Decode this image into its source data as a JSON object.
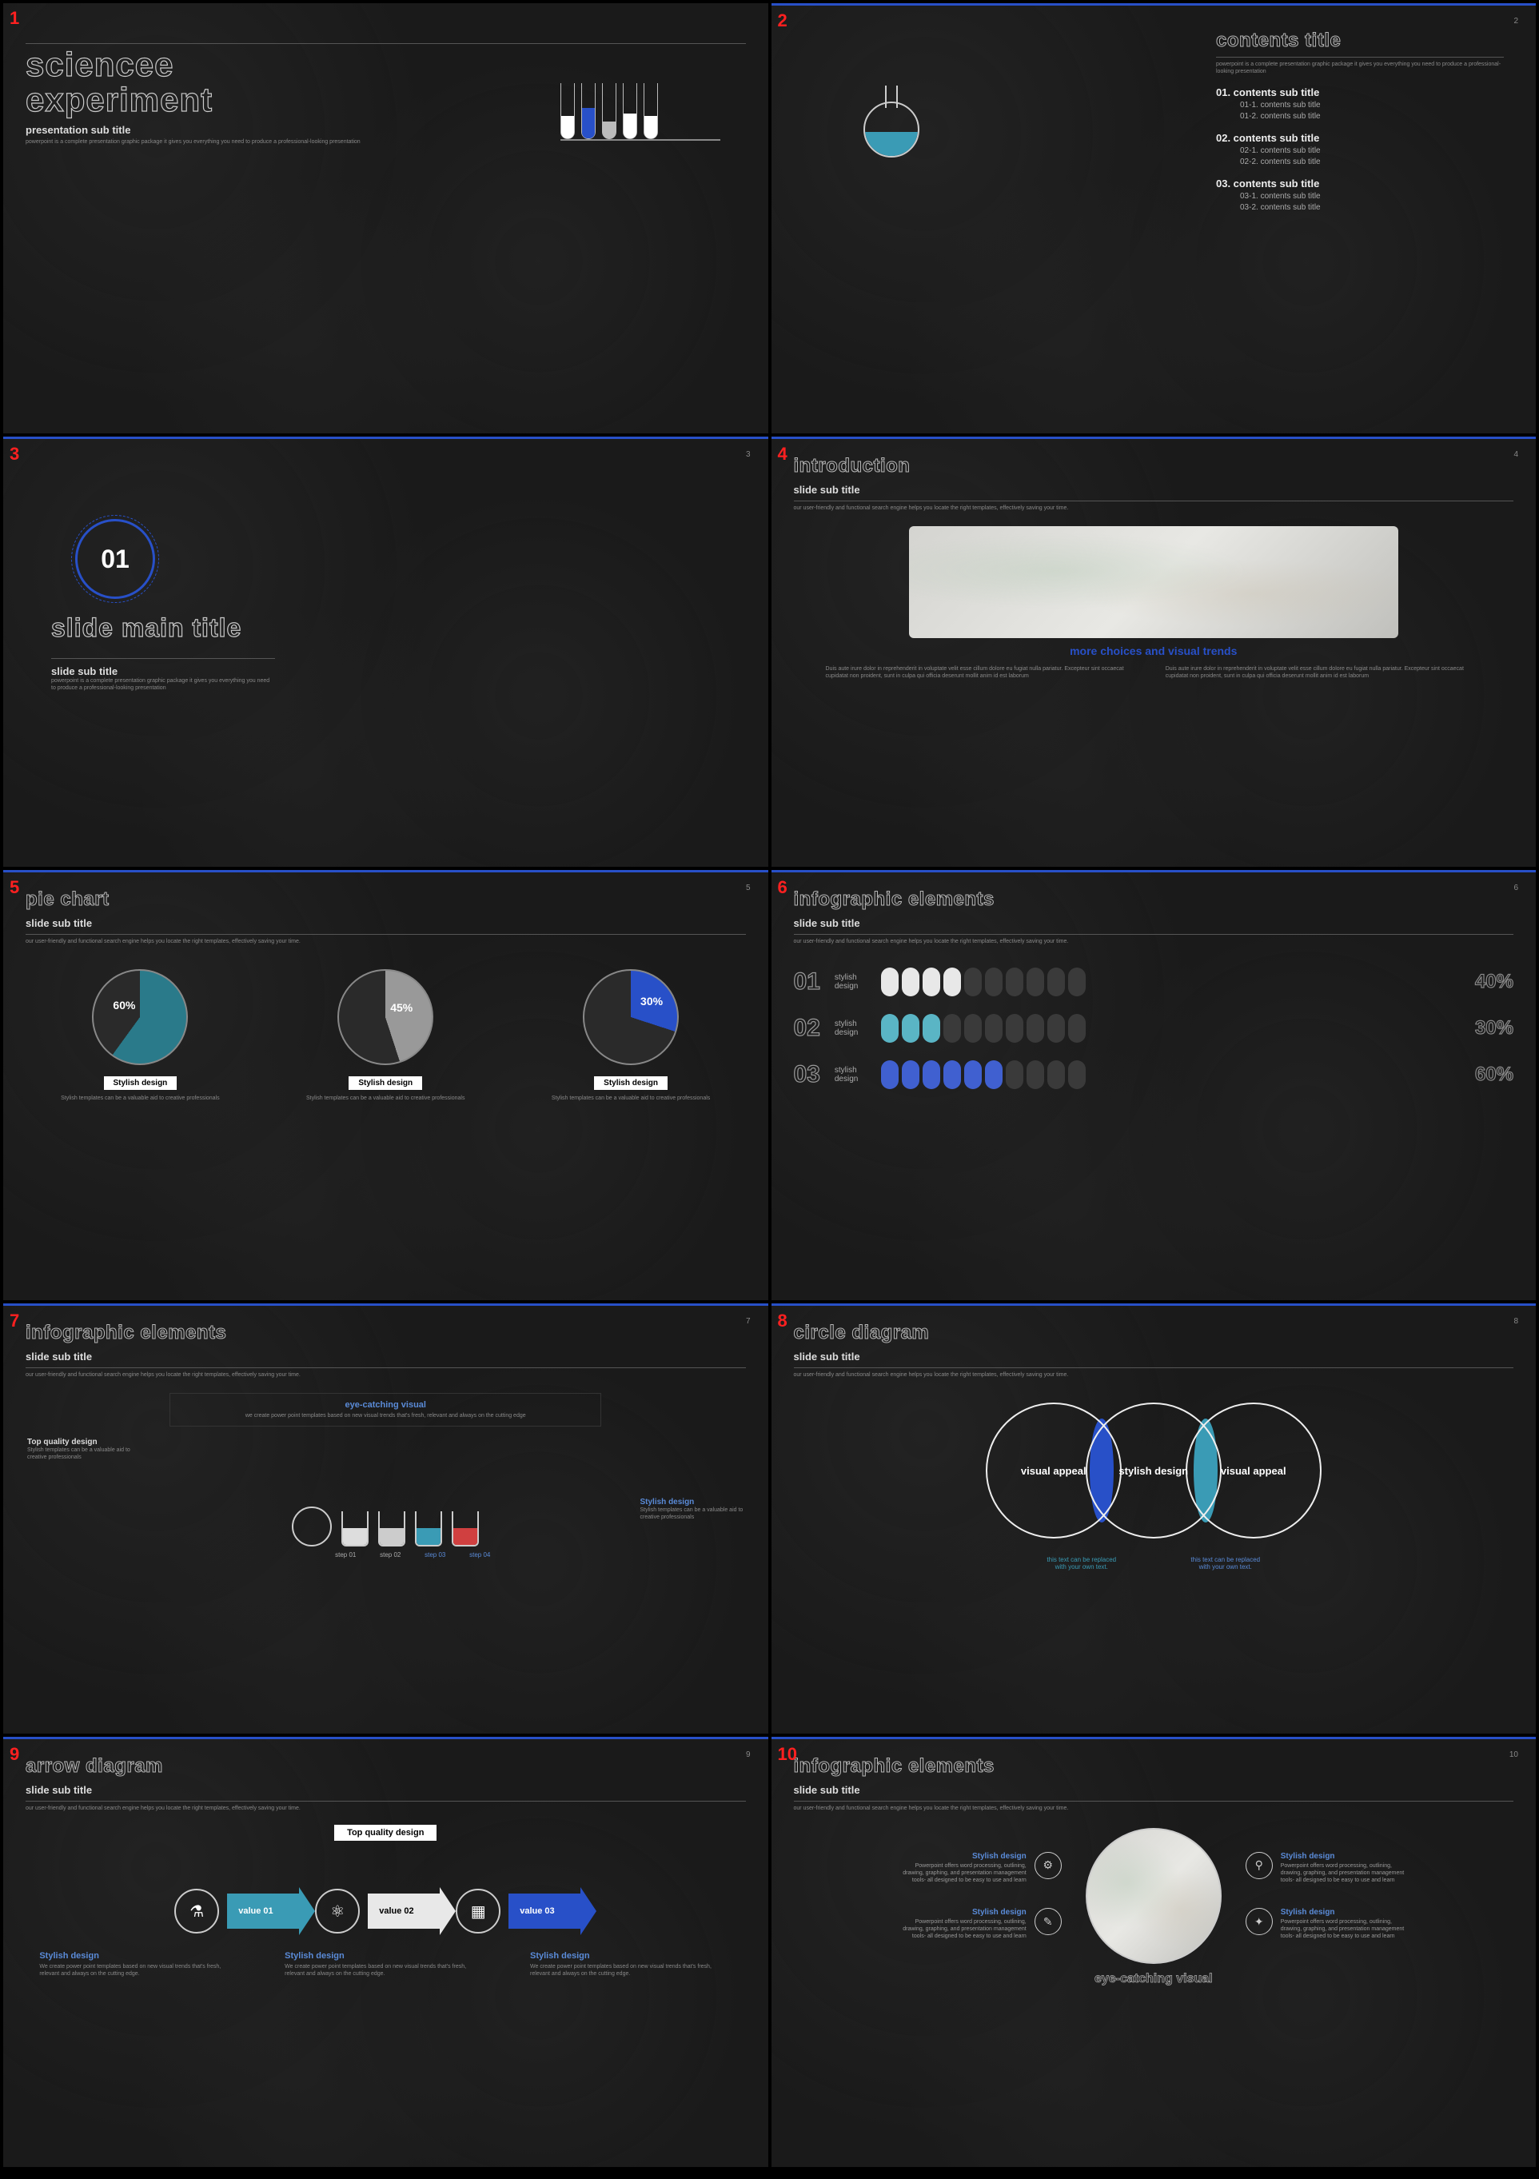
{
  "slide1": {
    "title1": "sciencee",
    "title2": "experiment",
    "sub": "presentation sub title",
    "desc": "powerpoint is a complete presentation graphic package it gives you everything you need to produce a professional-looking presentation",
    "tubes": [
      {
        "cls": "f1"
      },
      {
        "cls": "f2"
      },
      {
        "cls": "f3"
      },
      {
        "cls": "f4"
      },
      {
        "cls": "f1"
      }
    ]
  },
  "slide2": {
    "num": "2",
    "title": "contents title",
    "desc": "powerpoint is a complete presentation graphic package it gives you everything you need to produce a professional-looking presentation",
    "items": [
      {
        "h": "01. contents sub title",
        "s": [
          "01-1. contents sub title",
          "01-2. contents sub title"
        ]
      },
      {
        "h": "02. contents sub title",
        "s": [
          "02-1. contents sub title",
          "02-2. contents sub title"
        ]
      },
      {
        "h": "03. contents sub title",
        "s": [
          "03-1. contents sub title",
          "03-2. contents sub title"
        ]
      }
    ]
  },
  "slide3": {
    "num": "3",
    "circnum": "01",
    "title": "slide main title",
    "sub": "slide sub title",
    "desc": "powerpoint is a complete presentation graphic package it gives you everything you need to produce a professional-looking presentation"
  },
  "slide4": {
    "num": "4",
    "title": "introduction",
    "sub": "slide sub title",
    "desc": "our user-friendly and functional search engine helps you locate the right templates, effectively saving your time.",
    "tag": "more choices and visual trends",
    "col": "Duis aute irure dolor in reprehenderit in voluptate velit esse cillum dolore eu fugiat nulla pariatur. Excepteur sint occaecat cupidatat non proident, sunt in culpa qui officia deserunt mollit anim id est laborum"
  },
  "slide5": {
    "num": "5",
    "title": "pie chart",
    "sub": "slide sub title",
    "desc": "our user-friendly and functional search engine helps you locate the right templates, effectively saving your time.",
    "pies": [
      {
        "pct": "60%",
        "bg": "conic-gradient(#2a7a8a 0% 60%,#2a2a2a 60% 100%)",
        "lblpos": "top:35px;left:24px"
      },
      {
        "pct": "45%",
        "bg": "conic-gradient(#999 0% 45%,#2a2a2a 45% 100%)",
        "lblpos": "top:38px;right:24px"
      },
      {
        "pct": "30%",
        "bg": "conic-gradient(#2850c8 0% 30%,#2a2a2a 30% 100%)",
        "lblpos": "top:30px;right:18px"
      }
    ],
    "tag": "Stylish design",
    "cap": "Stylish templates can be a valuable aid to creative professionals"
  },
  "slide6": {
    "num": "6",
    "title": "infographic elements",
    "sub": "slide sub title",
    "desc": "our user-friendly and functional search engine helps you locate the right templates, effectively saving your time.",
    "rows": [
      {
        "n": "01",
        "lbl": "stylish design",
        "on": 4,
        "cls": "on1",
        "pct": "40%"
      },
      {
        "n": "02",
        "lbl": "stylish design",
        "on": 3,
        "cls": "on2",
        "pct": "30%"
      },
      {
        "n": "03",
        "lbl": "stylish design",
        "on": 6,
        "cls": "on3",
        "pct": "60%"
      }
    ],
    "total": 10
  },
  "slide7": {
    "num": "7",
    "title": "infographic elements",
    "sub": "slide sub title",
    "desc": "our user-friendly and functional search engine helps you locate the right templates, effectively saving your time.",
    "eyeh": "eye-catching visual",
    "eyet": "we create power point templates based on new visual trends that's fresh, relevant and always on the cutting edge",
    "tqh": "Top quality design",
    "tqt": "Stylish templates can be a valuable aid to creative professionals",
    "sdh": "Stylish design",
    "sdt": "Stylish templates can be a valuable aid to creative professionals",
    "steps": [
      "step 01",
      "step 02",
      "step 03",
      "step 04"
    ]
  },
  "slide8": {
    "num": "8",
    "title": "circle diagram",
    "sub": "slide sub title",
    "desc": "our user-friendly and functional search engine helps you locate the right templates, effectively saving your time.",
    "c1": "visual appeal",
    "c2": "stylish design",
    "c3": "visual appeal",
    "cap": "this text can be replaced with your own text."
  },
  "slide9": {
    "num": "9",
    "title": "arrow diagram",
    "sub": "slide sub title",
    "desc": "our user-friendly and functional search engine helps you locate the right templates, effectively saving your time.",
    "tq": "Top quality design",
    "arrows": [
      {
        "icon": "⚗",
        "lbl": "value 01",
        "color": "#3a9bb5"
      },
      {
        "icon": "⚛",
        "lbl": "value 02",
        "color": "#e8e8e8",
        "txtcolor": "#000"
      },
      {
        "icon": "▦",
        "lbl": "value 03",
        "color": "#2850c8"
      }
    ],
    "caph": "Stylish design",
    "capt": "We create power point templates based on new visual trends that's fresh, relevant and always on the cutting edge."
  },
  "slide10": {
    "num": "10",
    "title": "infographic elements",
    "sub": "slide sub title",
    "desc": "our user-friendly and functional search engine helps you locate the right templates, effectively saving your time.",
    "itemh": "Stylish design",
    "itemt": "Powerpoint offers word processing, outlining, drawing, graphing, and presentation management tools- all designed to be easy to use and learn",
    "ec": "eye-catching visual",
    "icons": [
      "⚙",
      "✎",
      "⚲",
      "✦"
    ]
  }
}
